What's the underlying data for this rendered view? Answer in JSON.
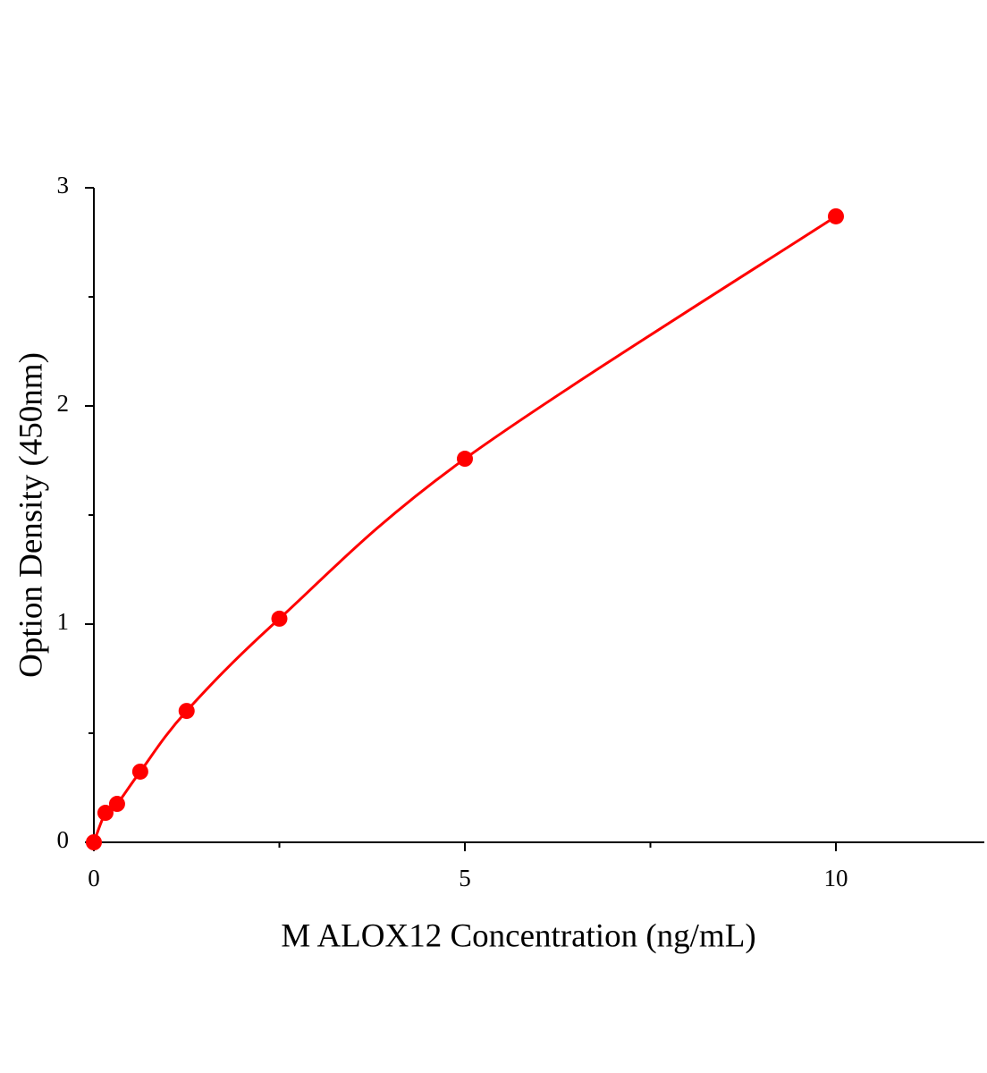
{
  "chart_data": {
    "type": "scatter",
    "x_label": "M ALOX12 Concentration (ng/mL)",
    "y_label": "Option Density (450nm)",
    "x": [
      0,
      0.156,
      0.3125,
      0.625,
      1.25,
      2.5,
      5,
      10
    ],
    "series": [
      {
        "color": "#ff0000",
        "values": [
          0,
          0.135,
          0.176,
          0.324,
          0.602,
          1.025,
          1.758,
          2.869
        ]
      }
    ],
    "curve": "smooth",
    "xlim": [
      0,
      12
    ],
    "xticks": [
      0,
      5,
      10
    ],
    "xminorticks": [
      2.5,
      7.5
    ],
    "ylim": [
      0,
      3
    ],
    "yticks": [
      0,
      1,
      2,
      3
    ],
    "yminorticks": [
      0.5,
      1.5,
      2.5
    ]
  }
}
